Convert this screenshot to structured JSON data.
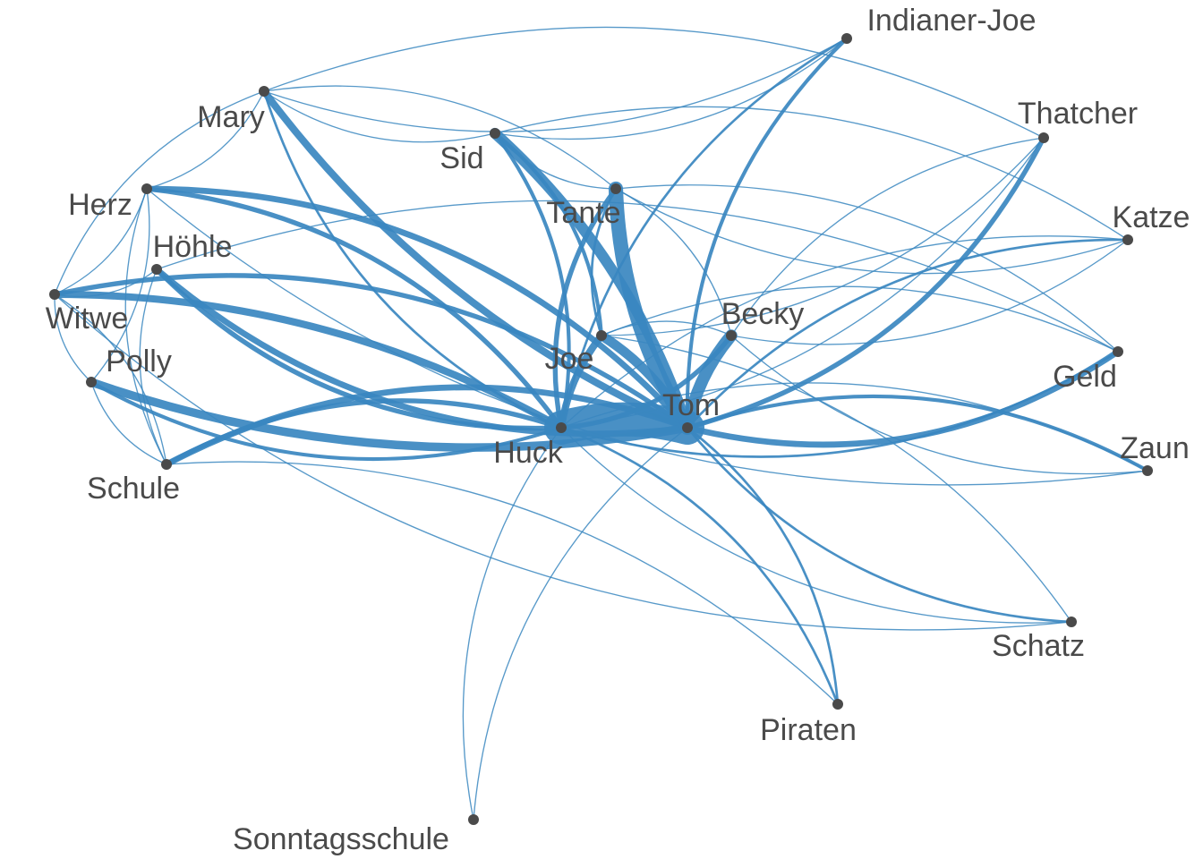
{
  "colors": {
    "edge": "#3a87c0",
    "node": "#4a4a4a",
    "label": "#4a4a4a",
    "background": "#ffffff"
  },
  "nodes": [
    {
      "id": "Tom",
      "label": "Tom"
    },
    {
      "id": "Huck",
      "label": "Huck"
    },
    {
      "id": "Joe",
      "label": "Joe"
    },
    {
      "id": "Becky",
      "label": "Becky"
    },
    {
      "id": "Tante",
      "label": "Tante"
    },
    {
      "id": "Sid",
      "label": "Sid"
    },
    {
      "id": "Mary",
      "label": "Mary"
    },
    {
      "id": "Herz",
      "label": "Herz"
    },
    {
      "id": "Hoehle",
      "label": "Höhle"
    },
    {
      "id": "Witwe",
      "label": "Witwe"
    },
    {
      "id": "Polly",
      "label": "Polly"
    },
    {
      "id": "Schule",
      "label": "Schule"
    },
    {
      "id": "IndianerJoe",
      "label": "Indianer-Joe"
    },
    {
      "id": "Thatcher",
      "label": "Thatcher"
    },
    {
      "id": "Katze",
      "label": "Katze"
    },
    {
      "id": "Geld",
      "label": "Geld"
    },
    {
      "id": "Zaun",
      "label": "Zaun"
    },
    {
      "id": "Schatz",
      "label": "Schatz"
    },
    {
      "id": "Piraten",
      "label": "Piraten"
    },
    {
      "id": "Sonntagsschule",
      "label": "Sonntagsschule"
    }
  ],
  "edges": [
    {
      "source": "Tom",
      "target": "Huck",
      "weight": 22
    },
    {
      "source": "Tom",
      "target": "Tante",
      "weight": 12
    },
    {
      "source": "Tom",
      "target": "Sid",
      "weight": 9
    },
    {
      "source": "Tom",
      "target": "Becky",
      "weight": 10
    },
    {
      "source": "Tom",
      "target": "Joe",
      "weight": 8
    },
    {
      "source": "Tom",
      "target": "Mary",
      "weight": 6
    },
    {
      "source": "Tom",
      "target": "Herz",
      "weight": 5
    },
    {
      "source": "Tom",
      "target": "Hoehle",
      "weight": 5
    },
    {
      "source": "Tom",
      "target": "Witwe",
      "weight": 4
    },
    {
      "source": "Tom",
      "target": "Polly",
      "weight": 7
    },
    {
      "source": "Tom",
      "target": "Schule",
      "weight": 5
    },
    {
      "source": "Tom",
      "target": "IndianerJoe",
      "weight": 3
    },
    {
      "source": "Tom",
      "target": "Thatcher",
      "weight": 4
    },
    {
      "source": "Tom",
      "target": "Katze",
      "weight": 2
    },
    {
      "source": "Tom",
      "target": "Geld",
      "weight": 5
    },
    {
      "source": "Tom",
      "target": "Zaun",
      "weight": 3
    },
    {
      "source": "Tom",
      "target": "Schatz",
      "weight": 2
    },
    {
      "source": "Tom",
      "target": "Piraten",
      "weight": 2
    },
    {
      "source": "Tom",
      "target": "Sonntagsschule",
      "weight": 1
    },
    {
      "source": "Huck",
      "target": "Joe",
      "weight": 6
    },
    {
      "source": "Huck",
      "target": "Becky",
      "weight": 4
    },
    {
      "source": "Huck",
      "target": "Tante",
      "weight": 4
    },
    {
      "source": "Huck",
      "target": "Sid",
      "weight": 3
    },
    {
      "source": "Huck",
      "target": "Mary",
      "weight": 2
    },
    {
      "source": "Huck",
      "target": "Herz",
      "weight": 4
    },
    {
      "source": "Huck",
      "target": "Hoehle",
      "weight": 4
    },
    {
      "source": "Huck",
      "target": "Witwe",
      "weight": 6
    },
    {
      "source": "Huck",
      "target": "Polly",
      "weight": 3
    },
    {
      "source": "Huck",
      "target": "Schule",
      "weight": 4
    },
    {
      "source": "Huck",
      "target": "IndianerJoe",
      "weight": 2
    },
    {
      "source": "Huck",
      "target": "Thatcher",
      "weight": 1
    },
    {
      "source": "Huck",
      "target": "Katze",
      "weight": 1
    },
    {
      "source": "Huck",
      "target": "Geld",
      "weight": 2
    },
    {
      "source": "Huck",
      "target": "Zaun",
      "weight": 1
    },
    {
      "source": "Huck",
      "target": "Schatz",
      "weight": 1
    },
    {
      "source": "Huck",
      "target": "Piraten",
      "weight": 2
    },
    {
      "source": "Huck",
      "target": "Sonntagsschule",
      "weight": 1
    },
    {
      "source": "Joe",
      "target": "Tante",
      "weight": 2
    },
    {
      "source": "Joe",
      "target": "Sid",
      "weight": 3
    },
    {
      "source": "Joe",
      "target": "Becky",
      "weight": 1
    },
    {
      "source": "Joe",
      "target": "Thatcher",
      "weight": 1
    },
    {
      "source": "Becky",
      "target": "Thatcher",
      "weight": 1
    },
    {
      "source": "Becky",
      "target": "Tante",
      "weight": 1
    },
    {
      "source": "Tante",
      "target": "Sid",
      "weight": 1
    },
    {
      "source": "Tante",
      "target": "Mary",
      "weight": 1
    },
    {
      "source": "Sid",
      "target": "Mary",
      "weight": 1
    },
    {
      "source": "Mary",
      "target": "Witwe",
      "weight": 1
    },
    {
      "source": "Mary",
      "target": "Herz",
      "weight": 1
    },
    {
      "source": "Mary",
      "target": "IndianerJoe",
      "weight": 1
    },
    {
      "source": "Herz",
      "target": "Witwe",
      "weight": 1
    },
    {
      "source": "Herz",
      "target": "Schule",
      "weight": 1
    },
    {
      "source": "Herz",
      "target": "Polly",
      "weight": 1
    },
    {
      "source": "Witwe",
      "target": "Polly",
      "weight": 1
    },
    {
      "source": "Witwe",
      "target": "Schule",
      "weight": 1
    },
    {
      "source": "Polly",
      "target": "Schule",
      "weight": 1
    },
    {
      "source": "Hoehle",
      "target": "Witwe",
      "weight": 1
    },
    {
      "source": "Hoehle",
      "target": "Schule",
      "weight": 1
    },
    {
      "source": "Sid",
      "target": "Katze",
      "weight": 1
    },
    {
      "source": "Sid",
      "target": "IndianerJoe",
      "weight": 1
    },
    {
      "source": "Tante",
      "target": "Geld",
      "weight": 1
    },
    {
      "source": "Tante",
      "target": "Katze",
      "weight": 1
    },
    {
      "source": "Mary",
      "target": "Thatcher",
      "weight": 1
    },
    {
      "source": "Herz",
      "target": "Zaun",
      "weight": 1
    },
    {
      "source": "Hoehle",
      "target": "Geld",
      "weight": 1
    },
    {
      "source": "Witwe",
      "target": "Schatz",
      "weight": 1
    },
    {
      "source": "Schule",
      "target": "Piraten",
      "weight": 1
    },
    {
      "source": "Becky",
      "target": "Zaun",
      "weight": 1
    },
    {
      "source": "Joe",
      "target": "Schatz",
      "weight": 1
    },
    {
      "source": "Becky",
      "target": "Katze",
      "weight": 1
    },
    {
      "source": "Joe",
      "target": "Geld",
      "weight": 1
    }
  ]
}
